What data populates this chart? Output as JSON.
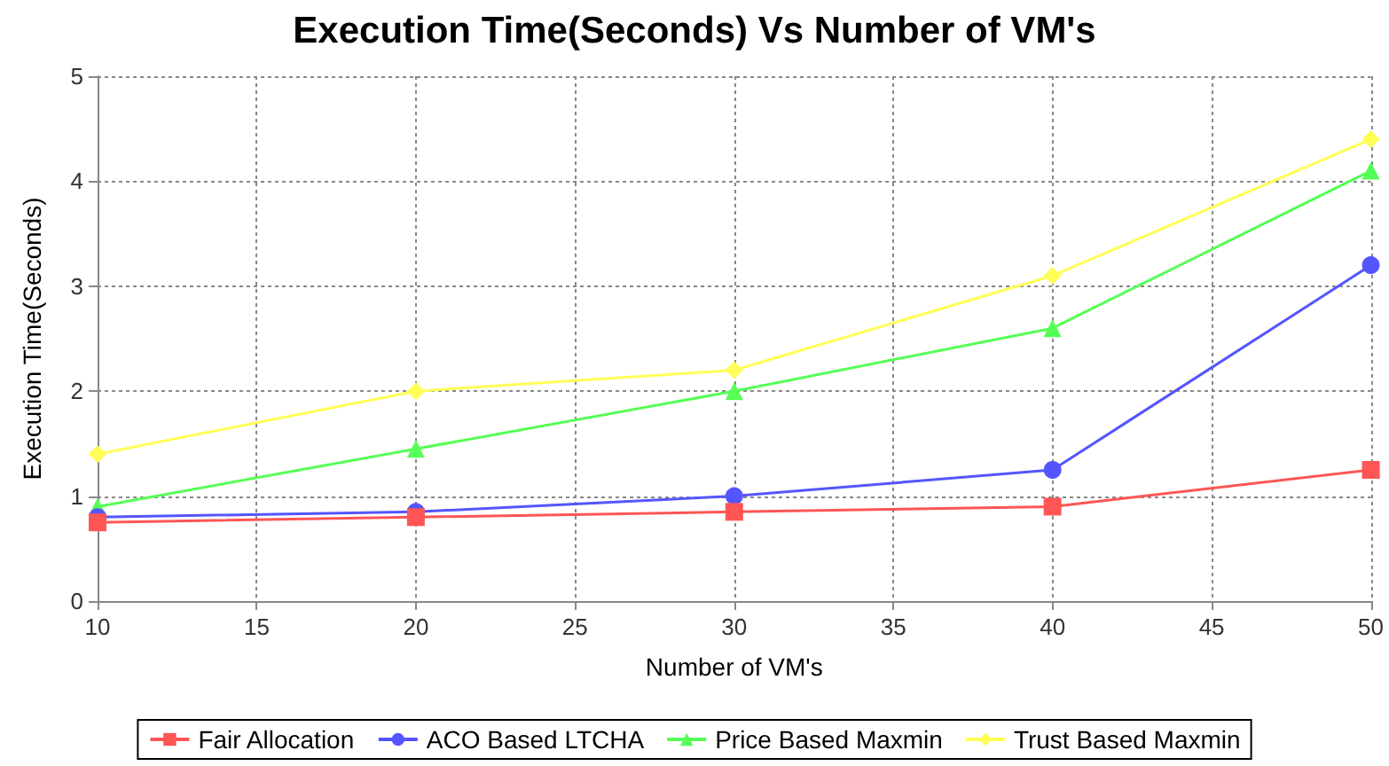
{
  "chart_data": {
    "type": "line",
    "title": "Execution Time(Seconds) Vs Number of VM's",
    "xlabel": "Number of VM's",
    "ylabel": "Execution Time(Seconds)",
    "x": [
      10,
      20,
      30,
      40,
      50
    ],
    "xlim": [
      10,
      50
    ],
    "xticks": [
      10,
      15,
      20,
      25,
      30,
      35,
      40,
      45,
      50
    ],
    "ylim": [
      0,
      5
    ],
    "yticks": [
      0,
      1,
      2,
      3,
      4,
      5
    ],
    "grid": true,
    "legend": "bottom",
    "series": [
      {
        "name": "Fair Allocation",
        "color": "#ff5555",
        "marker": "square",
        "values": [
          0.75,
          0.8,
          0.85,
          0.9,
          1.25
        ]
      },
      {
        "name": "ACO Based LTCHA",
        "color": "#5555ff",
        "marker": "circle",
        "values": [
          0.8,
          0.85,
          1.0,
          1.25,
          3.2
        ]
      },
      {
        "name": "Price Based Maxmin",
        "color": "#55ff55",
        "marker": "triangle",
        "values": [
          0.9,
          1.45,
          2.0,
          2.6,
          4.1
        ]
      },
      {
        "name": "Trust Based Maxmin",
        "color": "#ffff55",
        "marker": "diamond",
        "values": [
          1.4,
          2.0,
          2.2,
          3.1,
          4.4
        ]
      }
    ]
  }
}
